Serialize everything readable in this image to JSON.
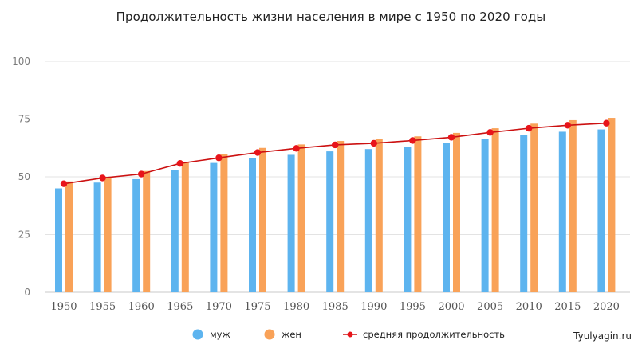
{
  "chart_data": {
    "type": "bar",
    "title": "Продолжительность жизни населения в мире с 1950 по 2020 годы",
    "categories": [
      "1950",
      "1955",
      "1960",
      "1965",
      "1970",
      "1975",
      "1980",
      "1985",
      "1990",
      "1995",
      "2000",
      "2005",
      "2010",
      "2015",
      "2020"
    ],
    "series": [
      {
        "name": "муж",
        "type": "bar",
        "color": "#5db4ef",
        "values": [
          45,
          47.5,
          49,
          53,
          56,
          58,
          59.5,
          61,
          62,
          63,
          64.5,
          66.5,
          68,
          69.5,
          70.5
        ]
      },
      {
        "name": "жен",
        "type": "bar",
        "color": "#f9a258",
        "values": [
          48,
          50,
          52.5,
          56.5,
          60,
          62.5,
          64,
          65.5,
          66.5,
          67.5,
          69,
          71,
          73,
          74.5,
          75.5
        ]
      },
      {
        "name": "средняя продолжительность",
        "type": "line",
        "color": "#cc1111",
        "marker_color": "#e8141a",
        "values": [
          47,
          49.5,
          51.2,
          55.8,
          58.2,
          60.5,
          62.3,
          63.8,
          64.5,
          65.7,
          67.1,
          69.2,
          71,
          72.3,
          73.2
        ]
      }
    ],
    "y_ticks": [
      "0",
      "25",
      "50",
      "75",
      "100"
    ],
    "ylim": [
      0,
      100
    ],
    "grid": true,
    "legend_position": "bottom"
  },
  "watermark": "Tyulyagin.ru"
}
